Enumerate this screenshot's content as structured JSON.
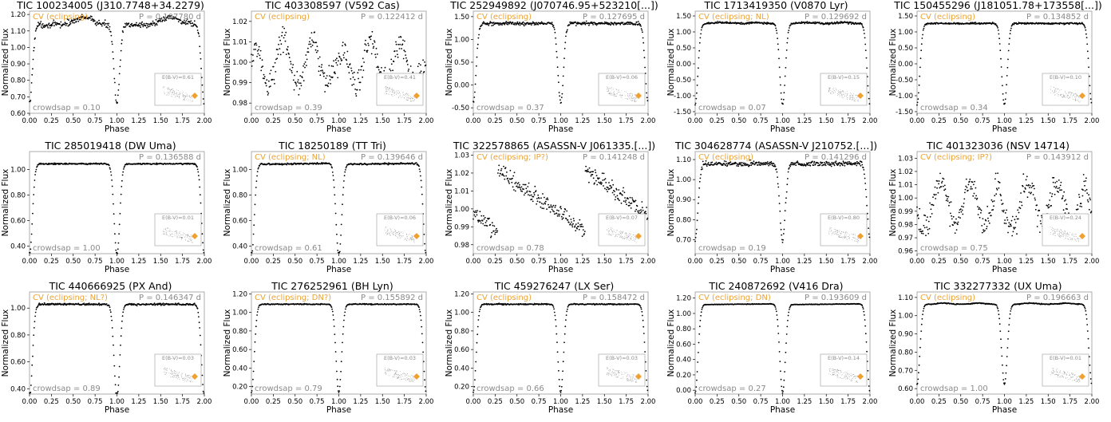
{
  "x_axis_label": "Phase",
  "y_axis_label": "Normalized Flux",
  "x_ticks": [
    "0.00",
    "0.25",
    "0.50",
    "0.75",
    "1.00",
    "1.25",
    "1.50",
    "1.75",
    "2.00"
  ],
  "colors": {
    "points": "#000000",
    "cv_label": "#e8a33a",
    "annot": "#8a8a8a",
    "marker": "#f0a030"
  },
  "chart_data": [
    {
      "type": "scatter",
      "title": "TIC 100234005 (J310.7748+34.2279)",
      "cv_type": "CV (eclipsing)",
      "period": "P = 0.107780 d",
      "crowdsap": "crowdsap = 0.10",
      "ebv": "E(B-V)=0.61",
      "ylim": [
        0.6,
        1.22
      ],
      "yticks": [
        0.6,
        0.7,
        0.8,
        0.9,
        1.0,
        1.1,
        1.2
      ],
      "yfmt": 2,
      "shape": "hump",
      "depth": 0.48,
      "noise": 0.03
    },
    {
      "type": "scatter",
      "title": "TIC 403308597 (V592 Cas)",
      "cv_type": "CV (eclipsing)",
      "period": "P = 0.122412 d",
      "crowdsap": "crowdsap = 0.39",
      "ebv": "E(B-V)=0.41",
      "ylim": [
        0.975,
        1.025
      ],
      "yticks": [
        0.98,
        0.99,
        1.0,
        1.01,
        1.02
      ],
      "yfmt": 2,
      "shape": "noisy",
      "depth": 0.02,
      "noise": 0.007
    },
    {
      "type": "scatter",
      "title": "TIC 252949892 (J070746.95+523210[...])",
      "cv_type": "CV (eclipsing)",
      "period": "P = 0.127695 d",
      "crowdsap": "crowdsap = 0.37",
      "ebv": "E(B-V)=0.06",
      "ylim": [
        -0.62,
        1.62
      ],
      "yticks": [
        -0.5,
        0.0,
        0.5,
        1.0,
        1.5
      ],
      "yfmt": 2,
      "shape": "flat",
      "depth": 1.75,
      "noise": 0.06
    },
    {
      "type": "scatter",
      "title": "TIC 1713419350 (V0870 Lyr)",
      "cv_type": "CV (eclipsing; NL)",
      "period": "P = 0.129692 d",
      "crowdsap": "crowdsap = 0.07",
      "ebv": "E(B-V)=0.15",
      "ylim": [
        -1.55,
        1.65
      ],
      "yticks": [
        -1.5,
        -1.0,
        -0.5,
        0.0,
        0.5,
        1.0,
        1.5
      ],
      "yfmt": 2,
      "shape": "twohump",
      "depth": 2.55,
      "noise": 0.05
    },
    {
      "type": "scatter",
      "title": "TIC 150455296 (J181051.78+173558[...])",
      "cv_type": "CV (eclipsing)",
      "period": "P = 0.134852 d",
      "crowdsap": "crowdsap = 0.34",
      "ebv": "E(B-V)=0.10",
      "ylim": [
        -1.55,
        1.65
      ],
      "yticks": [
        -1.5,
        -1.0,
        -0.5,
        0.0,
        0.5,
        1.0,
        1.5
      ],
      "yfmt": 2,
      "shape": "flat",
      "depth": 2.55,
      "noise": 0.04
    },
    {
      "type": "scatter",
      "title": "TIC 285019418 (DW Uma)",
      "cv_type": "",
      "period": "P = 0.136588 d",
      "crowdsap": "crowdsap = 1.00",
      "ebv": "E(B-V)=0.01",
      "ylim": [
        0.34,
        1.14
      ],
      "yticks": [
        0.4,
        0.6,
        0.8,
        1.0
      ],
      "yfmt": 2,
      "shape": "flat",
      "depth": 0.72,
      "noise": 0.008
    },
    {
      "type": "scatter",
      "title": "TIC 18250189 (TT Tri)",
      "cv_type": "CV (eclipsing; NL)",
      "period": "P = 0.139646 d",
      "crowdsap": "crowdsap = 0.61",
      "ebv": "E(B-V)=0.06",
      "ylim": [
        0.34,
        1.14
      ],
      "yticks": [
        0.4,
        0.6,
        0.8,
        1.0
      ],
      "yfmt": 2,
      "shape": "rising",
      "depth": 0.73,
      "noise": 0.01
    },
    {
      "type": "scatter",
      "title": "TIC 322578865 (ASASSN-V J061335.[...])",
      "cv_type": "CV (eclipsing; IP?)",
      "period": "P = 0.141248 d",
      "crowdsap": "crowdsap = 0.78",
      "ebv": "E(B-V)=0.07",
      "ylim": [
        0.975,
        1.032
      ],
      "yticks": [
        0.98,
        0.99,
        1.0,
        1.01,
        1.02,
        1.03
      ],
      "yfmt": 2,
      "shape": "sawtooth",
      "depth": 0.02,
      "noise": 0.004
    },
    {
      "type": "scatter",
      "title": "TIC 304628774 (ASASSN-V J210752.[...])",
      "cv_type": "CV (eclipsing)",
      "period": "P = 0.141296 d",
      "crowdsap": "crowdsap = 0.19",
      "ebv": "E(B-V)=0.80",
      "ylim": [
        0.63,
        1.14
      ],
      "yticks": [
        0.7,
        0.8,
        0.9,
        1.0,
        1.1
      ],
      "yfmt": 2,
      "shape": "flat",
      "depth": 0.38,
      "noise": 0.02
    },
    {
      "type": "scatter",
      "title": "TIC 401323036 (NSV 14714)",
      "cv_type": "CV (eclipsing; IP?)",
      "period": "P = 0.143912 d",
      "crowdsap": "crowdsap = 0.75",
      "ebv": "E(B-V)=0.24",
      "ylim": [
        0.958,
        1.035
      ],
      "yticks": [
        0.96,
        0.97,
        0.98,
        0.99,
        1.0,
        1.01,
        1.02,
        1.03
      ],
      "yfmt": 2,
      "shape": "noisy",
      "depth": 0.04,
      "noise": 0.012
    },
    {
      "type": "scatter",
      "title": "TIC 440666925 (PX And)",
      "cv_type": "CV (eclipsing; NL?)",
      "period": "P = 0.146347 d",
      "crowdsap": "crowdsap = 0.89",
      "ebv": "E(B-V)=0.03",
      "ylim": [
        0.36,
        1.12
      ],
      "yticks": [
        0.4,
        0.6,
        0.8,
        1.0
      ],
      "yfmt": 2,
      "shape": "flat",
      "depth": 0.7,
      "noise": 0.012
    },
    {
      "type": "scatter",
      "title": "TIC 276252961 (BH Lyn)",
      "cv_type": "CV (eclipsing; DN?)",
      "period": "P = 0.155892 d",
      "crowdsap": "crowdsap = 0.79",
      "ebv": "E(B-V)=0.03",
      "ylim": [
        0.12,
        1.22
      ],
      "yticks": [
        0.2,
        0.4,
        0.6,
        0.8,
        1.0,
        1.2
      ],
      "yfmt": 2,
      "shape": "flat",
      "depth": 0.95,
      "noise": 0.008
    },
    {
      "type": "scatter",
      "title": "TIC 459276247 (LX Ser)",
      "cv_type": "CV (eclipsing)",
      "period": "P = 0.158472 d",
      "crowdsap": "crowdsap = 0.66",
      "ebv": "E(B-V)=0.03",
      "ylim": [
        0.12,
        1.22
      ],
      "yticks": [
        0.2,
        0.4,
        0.6,
        0.8,
        1.0,
        1.2
      ],
      "yfmt": 2,
      "shape": "flat",
      "depth": 0.95,
      "noise": 0.01
    },
    {
      "type": "scatter",
      "title": "TIC 240872692 (V416 Dra)",
      "cv_type": "CV (eclipsing; DN)",
      "period": "P = 0.193609 d",
      "crowdsap": "crowdsap = 0.27",
      "ebv": "E(B-V)=0.14",
      "ylim": [
        -0.05,
        1.28
      ],
      "yticks": [
        0.0,
        0.2,
        0.4,
        0.6,
        0.8,
        1.0,
        1.2
      ],
      "yfmt": 2,
      "shape": "rising",
      "depth": 1.15,
      "noise": 0.006
    },
    {
      "type": "scatter",
      "title": "TIC 332277332 (UX Uma)",
      "cv_type": "CV (eclipsing)",
      "period": "P = 0.196663 d",
      "crowdsap": "crowdsap = 1.00",
      "ebv": "E(B-V)=0.01",
      "ylim": [
        0.57,
        1.13
      ],
      "yticks": [
        0.6,
        0.7,
        0.8,
        0.9,
        1.0,
        1.1
      ],
      "yfmt": 2,
      "shape": "twohump",
      "depth": 0.44,
      "noise": 0.004
    }
  ]
}
